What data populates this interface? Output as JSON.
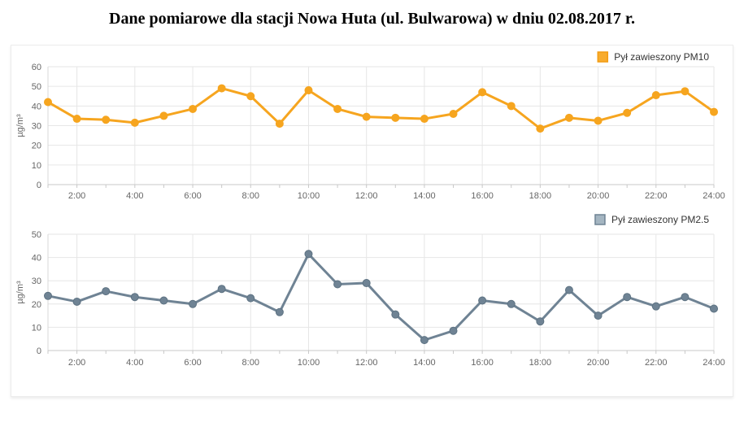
{
  "title": "Dane pomiarowe dla stacji Nowa Huta (ul. Bulwarowa) w dniu 02.08.2017 r.",
  "colors": {
    "pm10_line": "#f6a51f",
    "pm25_line": "#6f8394",
    "grid": "#e6e6e6",
    "axis": "#c8c8c8",
    "tick_label": "#666666",
    "legend_text": "#333333"
  },
  "chart_data": [
    {
      "type": "line",
      "legend": "Pył zawieszony PM10",
      "series_name": "Pył zawieszony PM10",
      "color": "#f6a51f",
      "marker_color": "#f6a51f",
      "marker_stroke": "#f6a51f",
      "swatch_fill": "#f8ac2e",
      "swatch_stroke": "#f39c12",
      "ylabel": "µg/m³",
      "ylim": [
        0,
        60
      ],
      "ytick_step": 10,
      "grid": true,
      "legend_position": "top-right",
      "x": [
        1,
        2,
        3,
        4,
        5,
        6,
        7,
        8,
        9,
        10,
        11,
        12,
        13,
        14,
        15,
        16,
        17,
        18,
        19,
        20,
        21,
        22,
        23,
        24
      ],
      "x_tick_labels": [
        "2:00",
        "4:00",
        "6:00",
        "8:00",
        "10:00",
        "12:00",
        "14:00",
        "16:00",
        "18:00",
        "20:00",
        "22:00",
        "24:00"
      ],
      "values": [
        42,
        33.5,
        33,
        31.5,
        35,
        38.5,
        49,
        45,
        31,
        48,
        38.5,
        34.5,
        34,
        33.5,
        36,
        47,
        40,
        28.5,
        34,
        32.5,
        36.5,
        45.5,
        47.5,
        37
      ]
    },
    {
      "type": "line",
      "legend": "Pył zawieszony PM2.5",
      "series_name": "Pył zawieszony PM2.5",
      "color": "#6f8394",
      "marker_color": "#6f8394",
      "marker_stroke": "#5d7282",
      "swatch_fill": "#a4b5c1",
      "swatch_stroke": "#6f8394",
      "ylabel": "µg/m³",
      "ylim": [
        0,
        50
      ],
      "ytick_step": 10,
      "grid": true,
      "legend_position": "top-right",
      "x": [
        1,
        2,
        3,
        4,
        5,
        6,
        7,
        8,
        9,
        10,
        11,
        12,
        13,
        14,
        15,
        16,
        17,
        18,
        19,
        20,
        21,
        22,
        23,
        24
      ],
      "x_tick_labels": [
        "2:00",
        "4:00",
        "6:00",
        "8:00",
        "10:00",
        "12:00",
        "14:00",
        "16:00",
        "18:00",
        "20:00",
        "22:00",
        "24:00"
      ],
      "values": [
        23.5,
        21,
        25.5,
        23,
        21.5,
        20,
        26.5,
        22.5,
        16.5,
        41.5,
        28.5,
        29,
        15.5,
        4.5,
        8.5,
        21.5,
        20,
        12.5,
        26,
        15,
        23,
        19,
        23,
        18
      ]
    }
  ]
}
